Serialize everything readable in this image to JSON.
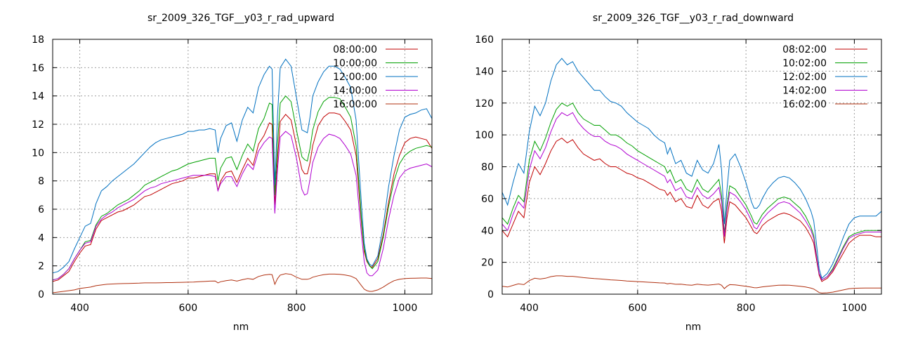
{
  "chart_data": [
    {
      "type": "line",
      "title": "sr_2009_326_TGF__y03_r_rad_upward",
      "xlabel": "nm",
      "ylabel": "",
      "xlim": [
        350,
        1050
      ],
      "ylim": [
        0,
        18
      ],
      "xticks": [
        400,
        600,
        800,
        1000
      ],
      "yticks": [
        0,
        2,
        4,
        6,
        8,
        10,
        12,
        14,
        16,
        18
      ],
      "grid": true,
      "legend_position": "top-right",
      "x": [
        350,
        360,
        370,
        380,
        390,
        400,
        410,
        420,
        430,
        440,
        450,
        460,
        470,
        480,
        490,
        500,
        510,
        520,
        530,
        540,
        550,
        560,
        570,
        580,
        590,
        600,
        610,
        620,
        630,
        640,
        650,
        655,
        660,
        670,
        680,
        690,
        700,
        710,
        720,
        730,
        740,
        750,
        755,
        760,
        765,
        770,
        780,
        790,
        800,
        810,
        815,
        820,
        825,
        830,
        840,
        850,
        860,
        870,
        880,
        890,
        900,
        910,
        920,
        925,
        930,
        935,
        940,
        950,
        960,
        970,
        980,
        990,
        1000,
        1010,
        1020,
        1030,
        1040,
        1050
      ],
      "series": [
        {
          "name": "08:00:00",
          "color": "#c00000",
          "values": [
            0.9,
            1.0,
            1.3,
            1.6,
            2.3,
            2.9,
            3.4,
            3.5,
            4.6,
            5.2,
            5.4,
            5.6,
            5.8,
            5.9,
            6.1,
            6.3,
            6.6,
            6.9,
            7.0,
            7.2,
            7.4,
            7.6,
            7.8,
            7.9,
            8.0,
            8.2,
            8.2,
            8.3,
            8.4,
            8.5,
            8.5,
            7.3,
            8.0,
            8.6,
            8.7,
            7.9,
            8.8,
            9.6,
            9.1,
            10.6,
            11.2,
            12.1,
            12.0,
            6.3,
            9.5,
            12.2,
            12.7,
            12.3,
            10.5,
            8.8,
            8.5,
            8.5,
            9.3,
            10.5,
            11.9,
            12.5,
            12.8,
            12.8,
            12.7,
            12.2,
            11.6,
            9.8,
            5.0,
            3.0,
            2.3,
            2.0,
            1.9,
            2.5,
            4.2,
            6.5,
            8.5,
            9.8,
            10.7,
            11.0,
            11.1,
            11.0,
            10.9,
            10.3
          ]
        },
        {
          "name": "10:00:00",
          "color": "#00a000",
          "values": [
            1.0,
            1.1,
            1.4,
            1.8,
            2.5,
            3.1,
            3.7,
            3.8,
            4.9,
            5.5,
            5.7,
            6.0,
            6.3,
            6.5,
            6.7,
            7.0,
            7.3,
            7.7,
            7.9,
            8.1,
            8.3,
            8.5,
            8.7,
            8.8,
            9.0,
            9.2,
            9.3,
            9.4,
            9.5,
            9.6,
            9.6,
            8.0,
            8.9,
            9.6,
            9.7,
            8.8,
            9.8,
            10.6,
            10.1,
            11.7,
            12.4,
            13.5,
            13.4,
            7.0,
            10.6,
            13.5,
            14.0,
            13.6,
            11.6,
            9.7,
            9.5,
            9.4,
            10.3,
            11.6,
            12.9,
            13.6,
            13.9,
            13.9,
            13.8,
            13.2,
            12.5,
            10.5,
            5.3,
            3.2,
            2.4,
            2.0,
            1.8,
            2.3,
            4.0,
            6.2,
            8.0,
            9.2,
            9.8,
            10.1,
            10.3,
            10.4,
            10.5,
            10.4
          ]
        },
        {
          "name": "12:00:00",
          "color": "#0070c0",
          "values": [
            1.5,
            1.6,
            1.9,
            2.3,
            3.2,
            4.0,
            4.8,
            5.0,
            6.4,
            7.3,
            7.6,
            8.0,
            8.3,
            8.6,
            8.9,
            9.2,
            9.6,
            10.0,
            10.4,
            10.7,
            10.9,
            11.0,
            11.1,
            11.2,
            11.3,
            11.5,
            11.5,
            11.6,
            11.6,
            11.7,
            11.6,
            10.0,
            11.0,
            11.9,
            12.1,
            10.8,
            12.3,
            13.2,
            12.8,
            14.6,
            15.5,
            16.1,
            15.9,
            7.7,
            12.6,
            16.0,
            16.6,
            16.1,
            13.9,
            11.6,
            11.5,
            11.4,
            12.5,
            14.0,
            15.0,
            15.7,
            16.1,
            16.1,
            15.9,
            15.3,
            14.6,
            12.3,
            6.3,
            3.6,
            2.5,
            2.1,
            2.0,
            2.7,
            4.8,
            7.6,
            9.8,
            11.6,
            12.5,
            12.7,
            12.8,
            13.0,
            13.1,
            12.4
          ]
        },
        {
          "name": "14:00:00",
          "color": "#b000d0",
          "values": [
            1.0,
            1.1,
            1.4,
            1.8,
            2.5,
            3.1,
            3.6,
            3.7,
            4.8,
            5.3,
            5.6,
            5.8,
            6.1,
            6.3,
            6.5,
            6.7,
            7.0,
            7.3,
            7.5,
            7.6,
            7.8,
            7.9,
            8.0,
            8.1,
            8.2,
            8.3,
            8.4,
            8.4,
            8.4,
            8.4,
            8.3,
            7.3,
            7.8,
            8.3,
            8.3,
            7.6,
            8.5,
            9.2,
            8.8,
            10.1,
            10.7,
            11.1,
            11.0,
            5.7,
            8.8,
            11.1,
            11.5,
            11.2,
            9.6,
            7.4,
            7.0,
            7.1,
            8.1,
            9.3,
            10.4,
            11.0,
            11.3,
            11.2,
            11.0,
            10.5,
            9.9,
            8.4,
            4.2,
            2.3,
            1.5,
            1.3,
            1.3,
            1.7,
            3.2,
            5.3,
            7.0,
            8.2,
            8.7,
            8.9,
            9.0,
            9.1,
            9.2,
            9.0
          ]
        },
        {
          "name": "16:00:00",
          "color": "#b03010",
          "values": [
            0.1,
            0.15,
            0.2,
            0.25,
            0.3,
            0.4,
            0.45,
            0.5,
            0.6,
            0.65,
            0.7,
            0.72,
            0.74,
            0.75,
            0.76,
            0.77,
            0.78,
            0.8,
            0.8,
            0.8,
            0.81,
            0.82,
            0.82,
            0.83,
            0.84,
            0.85,
            0.86,
            0.88,
            0.9,
            0.92,
            0.93,
            0.8,
            0.88,
            0.95,
            1.0,
            0.92,
            1.02,
            1.1,
            1.05,
            1.25,
            1.35,
            1.4,
            1.38,
            0.7,
            1.1,
            1.35,
            1.45,
            1.4,
            1.2,
            1.05,
            1.05,
            1.05,
            1.1,
            1.2,
            1.3,
            1.38,
            1.42,
            1.42,
            1.4,
            1.35,
            1.28,
            1.1,
            0.6,
            0.35,
            0.25,
            0.2,
            0.2,
            0.3,
            0.5,
            0.75,
            0.95,
            1.05,
            1.1,
            1.12,
            1.13,
            1.14,
            1.14,
            1.1
          ]
        }
      ]
    },
    {
      "type": "line",
      "title": "sr_2009_326_TGF__y03_r_rad_downward",
      "xlabel": "nm",
      "ylabel": "",
      "xlim": [
        350,
        1050
      ],
      "ylim": [
        0,
        160
      ],
      "xticks": [
        400,
        600,
        800,
        1000
      ],
      "yticks": [
        0,
        20,
        40,
        60,
        80,
        100,
        120,
        140,
        160
      ],
      "grid": true,
      "legend_position": "top-right",
      "x": [
        350,
        360,
        370,
        380,
        390,
        400,
        410,
        420,
        430,
        440,
        450,
        460,
        470,
        480,
        490,
        500,
        510,
        520,
        530,
        540,
        550,
        560,
        570,
        580,
        590,
        600,
        610,
        620,
        630,
        640,
        650,
        655,
        660,
        670,
        680,
        690,
        700,
        710,
        720,
        730,
        740,
        750,
        755,
        760,
        765,
        770,
        780,
        790,
        800,
        810,
        815,
        820,
        825,
        830,
        840,
        850,
        860,
        870,
        880,
        890,
        900,
        910,
        920,
        925,
        930,
        935,
        940,
        950,
        960,
        970,
        980,
        990,
        1000,
        1010,
        1020,
        1030,
        1040,
        1050
      ],
      "series": [
        {
          "name": "08:02:00",
          "color": "#c00000",
          "values": [
            40,
            36,
            44,
            52,
            48,
            70,
            80,
            75,
            82,
            90,
            96,
            98,
            95,
            97,
            92,
            88,
            86,
            84,
            85,
            82,
            80,
            80,
            78,
            76,
            75,
            73,
            72,
            70,
            68,
            66,
            65,
            62,
            64,
            58,
            60,
            55,
            54,
            62,
            56,
            54,
            58,
            60,
            52,
            32,
            48,
            58,
            56,
            52,
            48,
            42,
            39,
            38,
            40,
            43,
            46,
            48,
            50,
            51,
            50,
            48,
            46,
            42,
            36,
            32,
            22,
            12,
            8,
            10,
            14,
            20,
            26,
            32,
            35,
            37,
            37,
            37,
            36,
            36
          ]
        },
        {
          "name": "10:02:00",
          "color": "#00a000",
          "values": [
            48,
            44,
            54,
            62,
            58,
            84,
            96,
            90,
            98,
            108,
            116,
            120,
            118,
            120,
            114,
            110,
            108,
            106,
            106,
            103,
            100,
            100,
            98,
            95,
            93,
            90,
            88,
            86,
            84,
            82,
            80,
            76,
            78,
            70,
            72,
            66,
            64,
            72,
            66,
            64,
            68,
            72,
            62,
            38,
            56,
            68,
            66,
            61,
            56,
            49,
            45,
            44,
            47,
            50,
            54,
            57,
            60,
            61,
            60,
            57,
            54,
            49,
            42,
            37,
            25,
            13,
            9,
            11,
            16,
            23,
            30,
            36,
            38,
            39,
            40,
            40,
            40,
            40
          ]
        },
        {
          "name": "12:02:00",
          "color": "#0070c0",
          "values": [
            64,
            56,
            70,
            82,
            76,
            102,
            118,
            112,
            120,
            134,
            144,
            148,
            144,
            146,
            140,
            136,
            132,
            128,
            128,
            124,
            121,
            120,
            118,
            114,
            111,
            108,
            106,
            104,
            100,
            97,
            95,
            88,
            92,
            82,
            84,
            76,
            74,
            84,
            78,
            76,
            82,
            94,
            78,
            44,
            66,
            84,
            88,
            80,
            70,
            58,
            54,
            54,
            56,
            60,
            66,
            70,
            73,
            74,
            73,
            70,
            66,
            60,
            52,
            46,
            32,
            16,
            10,
            13,
            19,
            27,
            36,
            44,
            48,
            49,
            49,
            49,
            49,
            52
          ]
        },
        {
          "name": "14:02:00",
          "color": "#b000d0",
          "values": [
            44,
            40,
            50,
            58,
            54,
            78,
            90,
            85,
            92,
            102,
            110,
            114,
            112,
            114,
            108,
            104,
            101,
            99,
            99,
            96,
            94,
            93,
            91,
            88,
            86,
            84,
            82,
            80,
            78,
            76,
            74,
            70,
            72,
            65,
            67,
            61,
            60,
            67,
            62,
            60,
            63,
            67,
            58,
            36,
            53,
            64,
            62,
            58,
            53,
            46,
            42,
            41,
            44,
            47,
            51,
            54,
            57,
            58,
            57,
            54,
            51,
            46,
            40,
            35,
            24,
            13,
            9,
            11,
            15,
            22,
            29,
            35,
            37,
            38,
            39,
            39,
            39,
            39
          ]
        },
        {
          "name": "16:02:00",
          "color": "#b03010",
          "values": [
            5,
            4.5,
            5.5,
            6.5,
            6,
            8.5,
            10,
            9.5,
            10,
            11,
            11.5,
            11.5,
            11.2,
            11.2,
            10.8,
            10.4,
            10.1,
            9.8,
            9.6,
            9.3,
            9.0,
            8.8,
            8.6,
            8.3,
            8.1,
            7.9,
            7.7,
            7.5,
            7.3,
            7.1,
            7.0,
            6.5,
            6.8,
            6.2,
            6.3,
            5.8,
            5.6,
            6.3,
            5.9,
            5.7,
            6.0,
            6.4,
            5.6,
            3.5,
            5.0,
            6.0,
            5.8,
            5.4,
            5.0,
            4.4,
            4.1,
            4.0,
            4.3,
            4.6,
            5.0,
            5.3,
            5.6,
            5.7,
            5.6,
            5.3,
            5.0,
            4.5,
            3.8,
            3.2,
            2.2,
            1.0,
            0.7,
            0.9,
            1.3,
            2.0,
            2.7,
            3.4,
            3.7,
            3.8,
            3.9,
            3.9,
            3.9,
            3.9
          ]
        }
      ]
    }
  ]
}
